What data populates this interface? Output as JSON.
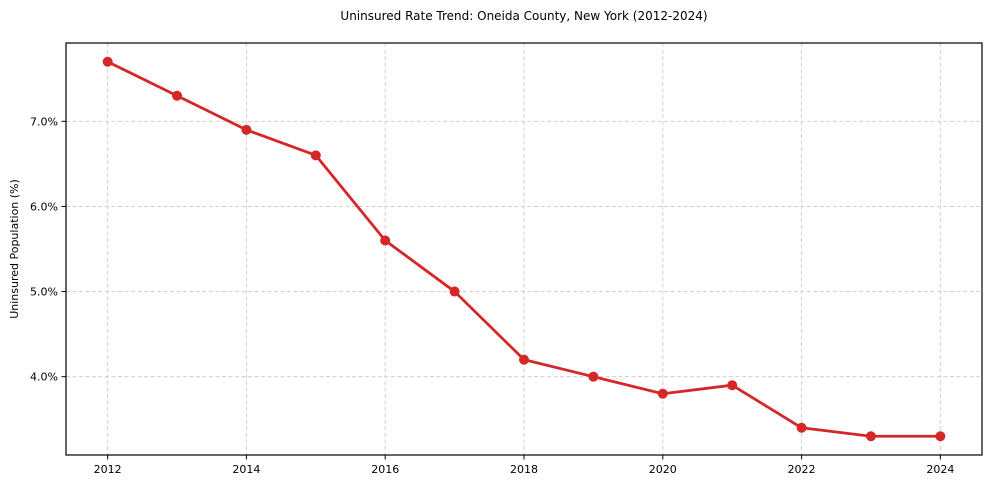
{
  "page": {
    "background": "#ffffff",
    "text_color": "#000000"
  },
  "chart_data": {
    "type": "line",
    "title": "Uninsured Rate Trend: Oneida County, New York (2012-2024)",
    "xlabel": "",
    "ylabel": "Uninsured Population (%)",
    "x": [
      2012,
      2013,
      2014,
      2015,
      2016,
      2017,
      2018,
      2019,
      2020,
      2021,
      2022,
      2023,
      2024
    ],
    "series": [
      {
        "name": "Uninsured rate",
        "values": [
          7.7,
          7.3,
          6.9,
          6.6,
          5.6,
          5.0,
          4.2,
          4.0,
          3.8,
          3.9,
          3.4,
          3.3,
          3.3
        ],
        "color": "#d62728",
        "marker": "circle"
      }
    ],
    "xlim": [
      2011.4,
      2024.6
    ],
    "ylim": [
      3.08,
      7.92
    ],
    "x_ticks": [
      2012,
      2014,
      2016,
      2018,
      2020,
      2022,
      2024
    ],
    "x_tick_labels": [
      "2012",
      "2014",
      "2016",
      "2018",
      "2020",
      "2022",
      "2024"
    ],
    "y_ticks": [
      4.0,
      5.0,
      6.0,
      7.0
    ],
    "y_tick_labels": [
      "4.0%",
      "5.0%",
      "6.0%",
      "7.0%"
    ],
    "grid": true,
    "grid_color": "#d0d0d0",
    "legend": false,
    "spine_color": "#000000",
    "line_width": 2.8,
    "marker_radius": 5
  }
}
